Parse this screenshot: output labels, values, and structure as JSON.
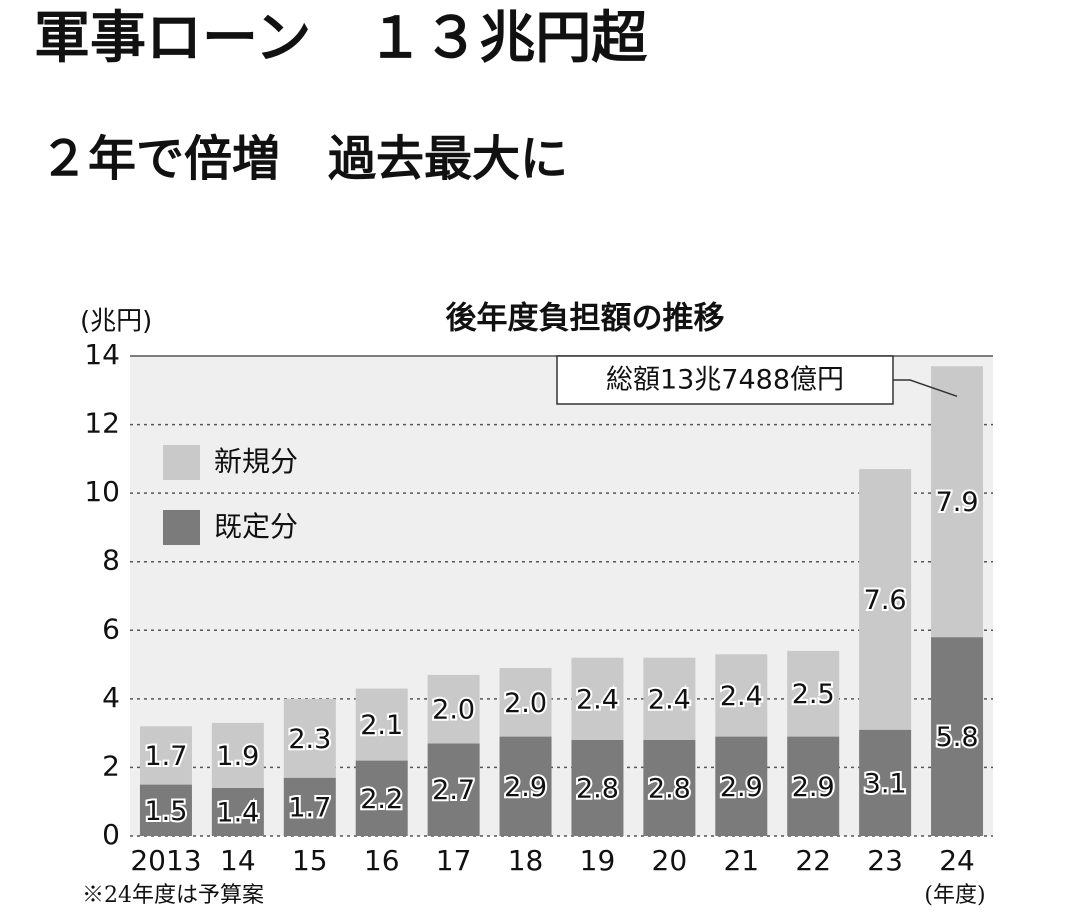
{
  "headline": {
    "title": "軍事ローン　１３兆円超",
    "subtitle": "２年で倍増　過去最大に"
  },
  "chart_data": {
    "type": "stacked_bar",
    "title": "後年度負担額の推移",
    "y_unit_label": "(兆円)",
    "x_unit_label": "(年度)",
    "footnote": "※24年度は予算案",
    "annotation": "総額13兆7488億円",
    "categories": [
      "2013",
      "14",
      "15",
      "16",
      "17",
      "18",
      "19",
      "20",
      "21",
      "22",
      "23",
      "24"
    ],
    "series": [
      {
        "name": "既定分",
        "color": "#7b7b7b",
        "values": [
          1.5,
          1.4,
          1.7,
          2.2,
          2.7,
          2.9,
          2.8,
          2.8,
          2.9,
          2.9,
          3.1,
          5.8
        ],
        "value_labels": [
          "1.5",
          "1.4",
          "1.7",
          "2.2",
          "2.7",
          "2.9",
          "2.8",
          "2.8",
          "2.9",
          "2.9",
          "3.1",
          "5.8"
        ]
      },
      {
        "name": "新規分",
        "color": "#c9c9c9",
        "values": [
          1.7,
          1.9,
          2.3,
          2.1,
          2.0,
          2.0,
          2.4,
          2.4,
          2.4,
          2.5,
          7.6,
          7.9
        ],
        "value_labels": [
          "1.7",
          "1.9",
          "2.3",
          "2.1",
          "2.0",
          "2.0",
          "2.4",
          "2.4",
          "2.4",
          "2.5",
          "7.6",
          "7.9"
        ]
      }
    ],
    "ylim": [
      0,
      14
    ],
    "yticks": [
      0,
      2,
      4,
      6,
      8,
      10,
      12,
      14
    ],
    "grid": true,
    "legend": "top-left"
  }
}
